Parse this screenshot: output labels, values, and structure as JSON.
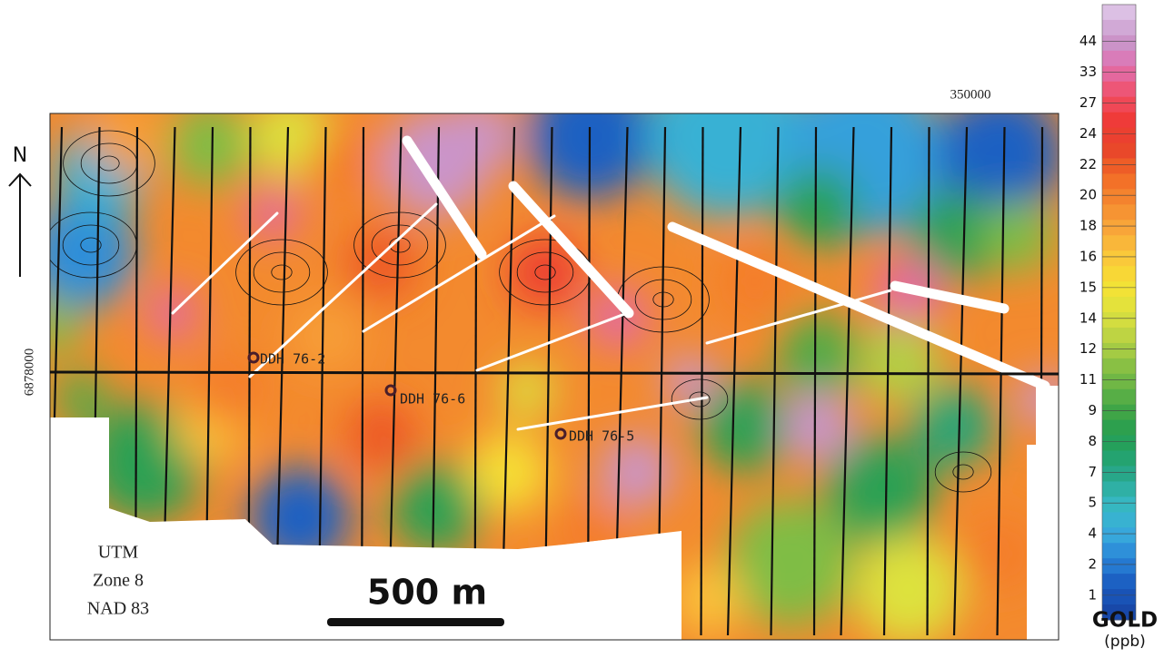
{
  "map": {
    "north_label": "N",
    "easting_label": "350000",
    "northing_label": "6878000",
    "drill_holes": [
      "DDH 76-2",
      "DDH 76-6",
      "DDH 76-5"
    ],
    "projection": [
      "UTM",
      "Zone 8",
      "NAD 83"
    ],
    "scale_label": "500 m"
  },
  "legend": {
    "labels": [
      44,
      33,
      27,
      24,
      22,
      20,
      18,
      16,
      15,
      14,
      12,
      11,
      9,
      8,
      7,
      5,
      4,
      2,
      1
    ],
    "title": "GOLD",
    "unit": "(ppb)"
  }
}
